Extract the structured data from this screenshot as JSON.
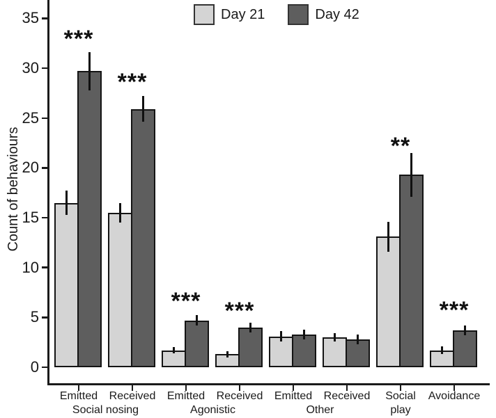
{
  "chart_data": {
    "type": "bar",
    "title": "",
    "xlabel": "",
    "ylabel": "Count of behaviours",
    "ylim": [
      0,
      35
    ],
    "yticks": [
      0,
      5,
      10,
      15,
      20,
      25,
      30,
      35
    ],
    "grid": "off",
    "legend_position": "top-center",
    "error_bar_style": "vertical-line-no-caps",
    "x_tick_labels": [
      "Emitted",
      "Received",
      "Emitted",
      "Received",
      "Emitted",
      "Received",
      "Social",
      "Avoidance"
    ],
    "x_tick_labels_line2": [
      "",
      "",
      "",
      "",
      "",
      "",
      "play",
      ""
    ],
    "x_section_labels": [
      {
        "text": "Social nosing",
        "between_groups": [
          0,
          1
        ]
      },
      {
        "text": "Agonistic",
        "between_groups": [
          2,
          3
        ]
      },
      {
        "text": "Other",
        "between_groups": [
          4,
          5
        ]
      }
    ],
    "series": [
      {
        "name": "Day 21",
        "color": "#d4d4d4",
        "values": [
          16.5,
          15.5,
          1.7,
          1.3,
          3.1,
          3.0,
          13.1,
          1.7
        ],
        "errors": [
          1.2,
          1.0,
          0.3,
          0.3,
          0.5,
          0.4,
          1.5,
          0.4
        ]
      },
      {
        "name": "Day 42",
        "color": "#5e5e5e",
        "values": [
          29.7,
          25.9,
          4.7,
          4.0,
          3.3,
          2.8,
          19.3,
          3.7
        ],
        "errors": [
          1.9,
          1.3,
          0.5,
          0.5,
          0.5,
          0.5,
          2.2,
          0.5
        ]
      }
    ],
    "significance": [
      {
        "group": 0,
        "text": "***",
        "y": 33.2
      },
      {
        "group": 1,
        "text": "***",
        "y": 28.9
      },
      {
        "group": 2,
        "text": "***",
        "y": 6.9
      },
      {
        "group": 3,
        "text": "***",
        "y": 5.9
      },
      {
        "group": 6,
        "text": "**",
        "y": 22.5
      },
      {
        "group": 7,
        "text": "***",
        "y": 6.0
      }
    ]
  }
}
